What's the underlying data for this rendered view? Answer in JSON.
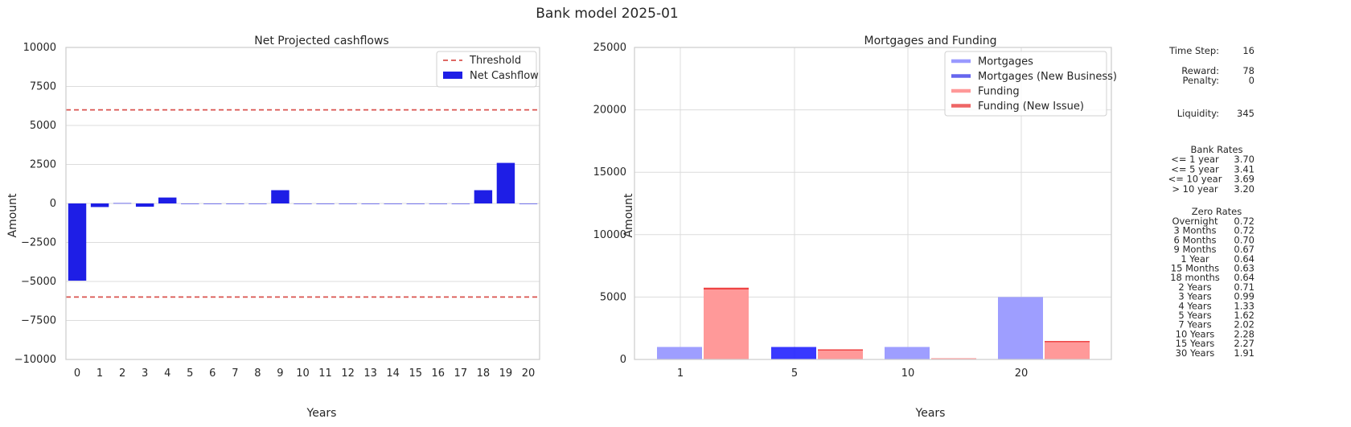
{
  "figure_title": "Bank model 2025-01",
  "chart_data": [
    {
      "type": "bar",
      "title": "Net Projected cashflows",
      "xlabel": "Years",
      "ylabel": "Amount",
      "ylim": [
        -10000,
        10000
      ],
      "yticks": [
        10000,
        7500,
        5000,
        2500,
        0,
        -2500,
        -5000,
        -7500,
        -10000
      ],
      "ytick_labels": [
        "10000",
        "7500",
        "5000",
        "2500",
        "0",
        "−2500",
        "−5000",
        "−7500",
        "−10000"
      ],
      "categories": [
        "0",
        "1",
        "2",
        "3",
        "4",
        "5",
        "6",
        "7",
        "8",
        "9",
        "10",
        "11",
        "12",
        "13",
        "14",
        "15",
        "16",
        "17",
        "18",
        "19",
        "20"
      ],
      "series": [
        {
          "name": "Net Cashflow",
          "color": "#1e1ee6",
          "values": [
            -4950,
            -230,
            20,
            -210,
            380,
            0,
            0,
            0,
            0,
            850,
            0,
            0,
            0,
            0,
            0,
            0,
            0,
            0,
            850,
            2600,
            0
          ]
        }
      ],
      "threshold": {
        "name": "Threshold",
        "values": [
          6000,
          -6000
        ],
        "color": "#d9534f",
        "style": "dashed"
      },
      "legend": "top-right",
      "grid": "horizontal"
    },
    {
      "type": "bar",
      "title": "Mortgages and Funding",
      "xlabel": "Years",
      "ylabel": "Amount",
      "ylim": [
        0,
        25000
      ],
      "yticks": [
        0,
        5000,
        10000,
        15000,
        20000,
        25000
      ],
      "ytick_labels": [
        "0",
        "5000",
        "10000",
        "15000",
        "20000",
        "25000"
      ],
      "categories": [
        "1",
        "5",
        "10",
        "20"
      ],
      "series": [
        {
          "name": "Mortgages",
          "color": "#9999ff",
          "values": [
            1000,
            0,
            1000,
            5000
          ]
        },
        {
          "name": "Mortgages (New Business)",
          "color": "#2222ff",
          "values": [
            0,
            1000,
            0,
            0
          ]
        },
        {
          "name": "Funding",
          "color": "#ff9999",
          "values": [
            5600,
            750,
            100,
            1400
          ]
        },
        {
          "name": "Funding (New Issue)",
          "color": "#ee4444",
          "values": [
            150,
            60,
            0,
            80
          ]
        }
      ],
      "legend_colors": [
        "#9999ff",
        "#6666ee",
        "#ff9999",
        "#ee6666"
      ],
      "legend": "top-right",
      "grid": "both"
    }
  ],
  "side_panel": {
    "time_step_label": "Time Step:",
    "time_step": "16",
    "reward_label": "Reward:",
    "reward": "78",
    "penalty_label": "Penalty:",
    "penalty": "0",
    "liquidity_label": "Liquidity:",
    "liquidity": "345",
    "bank_rates_title": "Bank Rates",
    "bank_rates": [
      {
        "label": "<= 1 year",
        "value": "3.70"
      },
      {
        "label": "<= 5 year",
        "value": "3.41"
      },
      {
        "label": "<= 10 year",
        "value": "3.69"
      },
      {
        "label": "> 10 year",
        "value": "3.20"
      }
    ],
    "zero_rates_title": "Zero Rates",
    "zero_rates": [
      {
        "label": "Overnight",
        "value": "0.72"
      },
      {
        "label": "3 Months",
        "value": "0.72"
      },
      {
        "label": "6 Months",
        "value": "0.70"
      },
      {
        "label": "9 Months",
        "value": "0.67"
      },
      {
        "label": "1 Year",
        "value": "0.64"
      },
      {
        "label": "15 Months",
        "value": "0.63"
      },
      {
        "label": "18 months",
        "value": "0.64"
      },
      {
        "label": "2 Years",
        "value": "0.71"
      },
      {
        "label": "3 Years",
        "value": "0.99"
      },
      {
        "label": "4 Years",
        "value": "1.33"
      },
      {
        "label": "5 Years",
        "value": "1.62"
      },
      {
        "label": "7 Years",
        "value": "2.02"
      },
      {
        "label": "10 Years",
        "value": "2.28"
      },
      {
        "label": "15 Years",
        "value": "2.27"
      },
      {
        "label": "30 Years",
        "value": "1.91"
      }
    ]
  }
}
